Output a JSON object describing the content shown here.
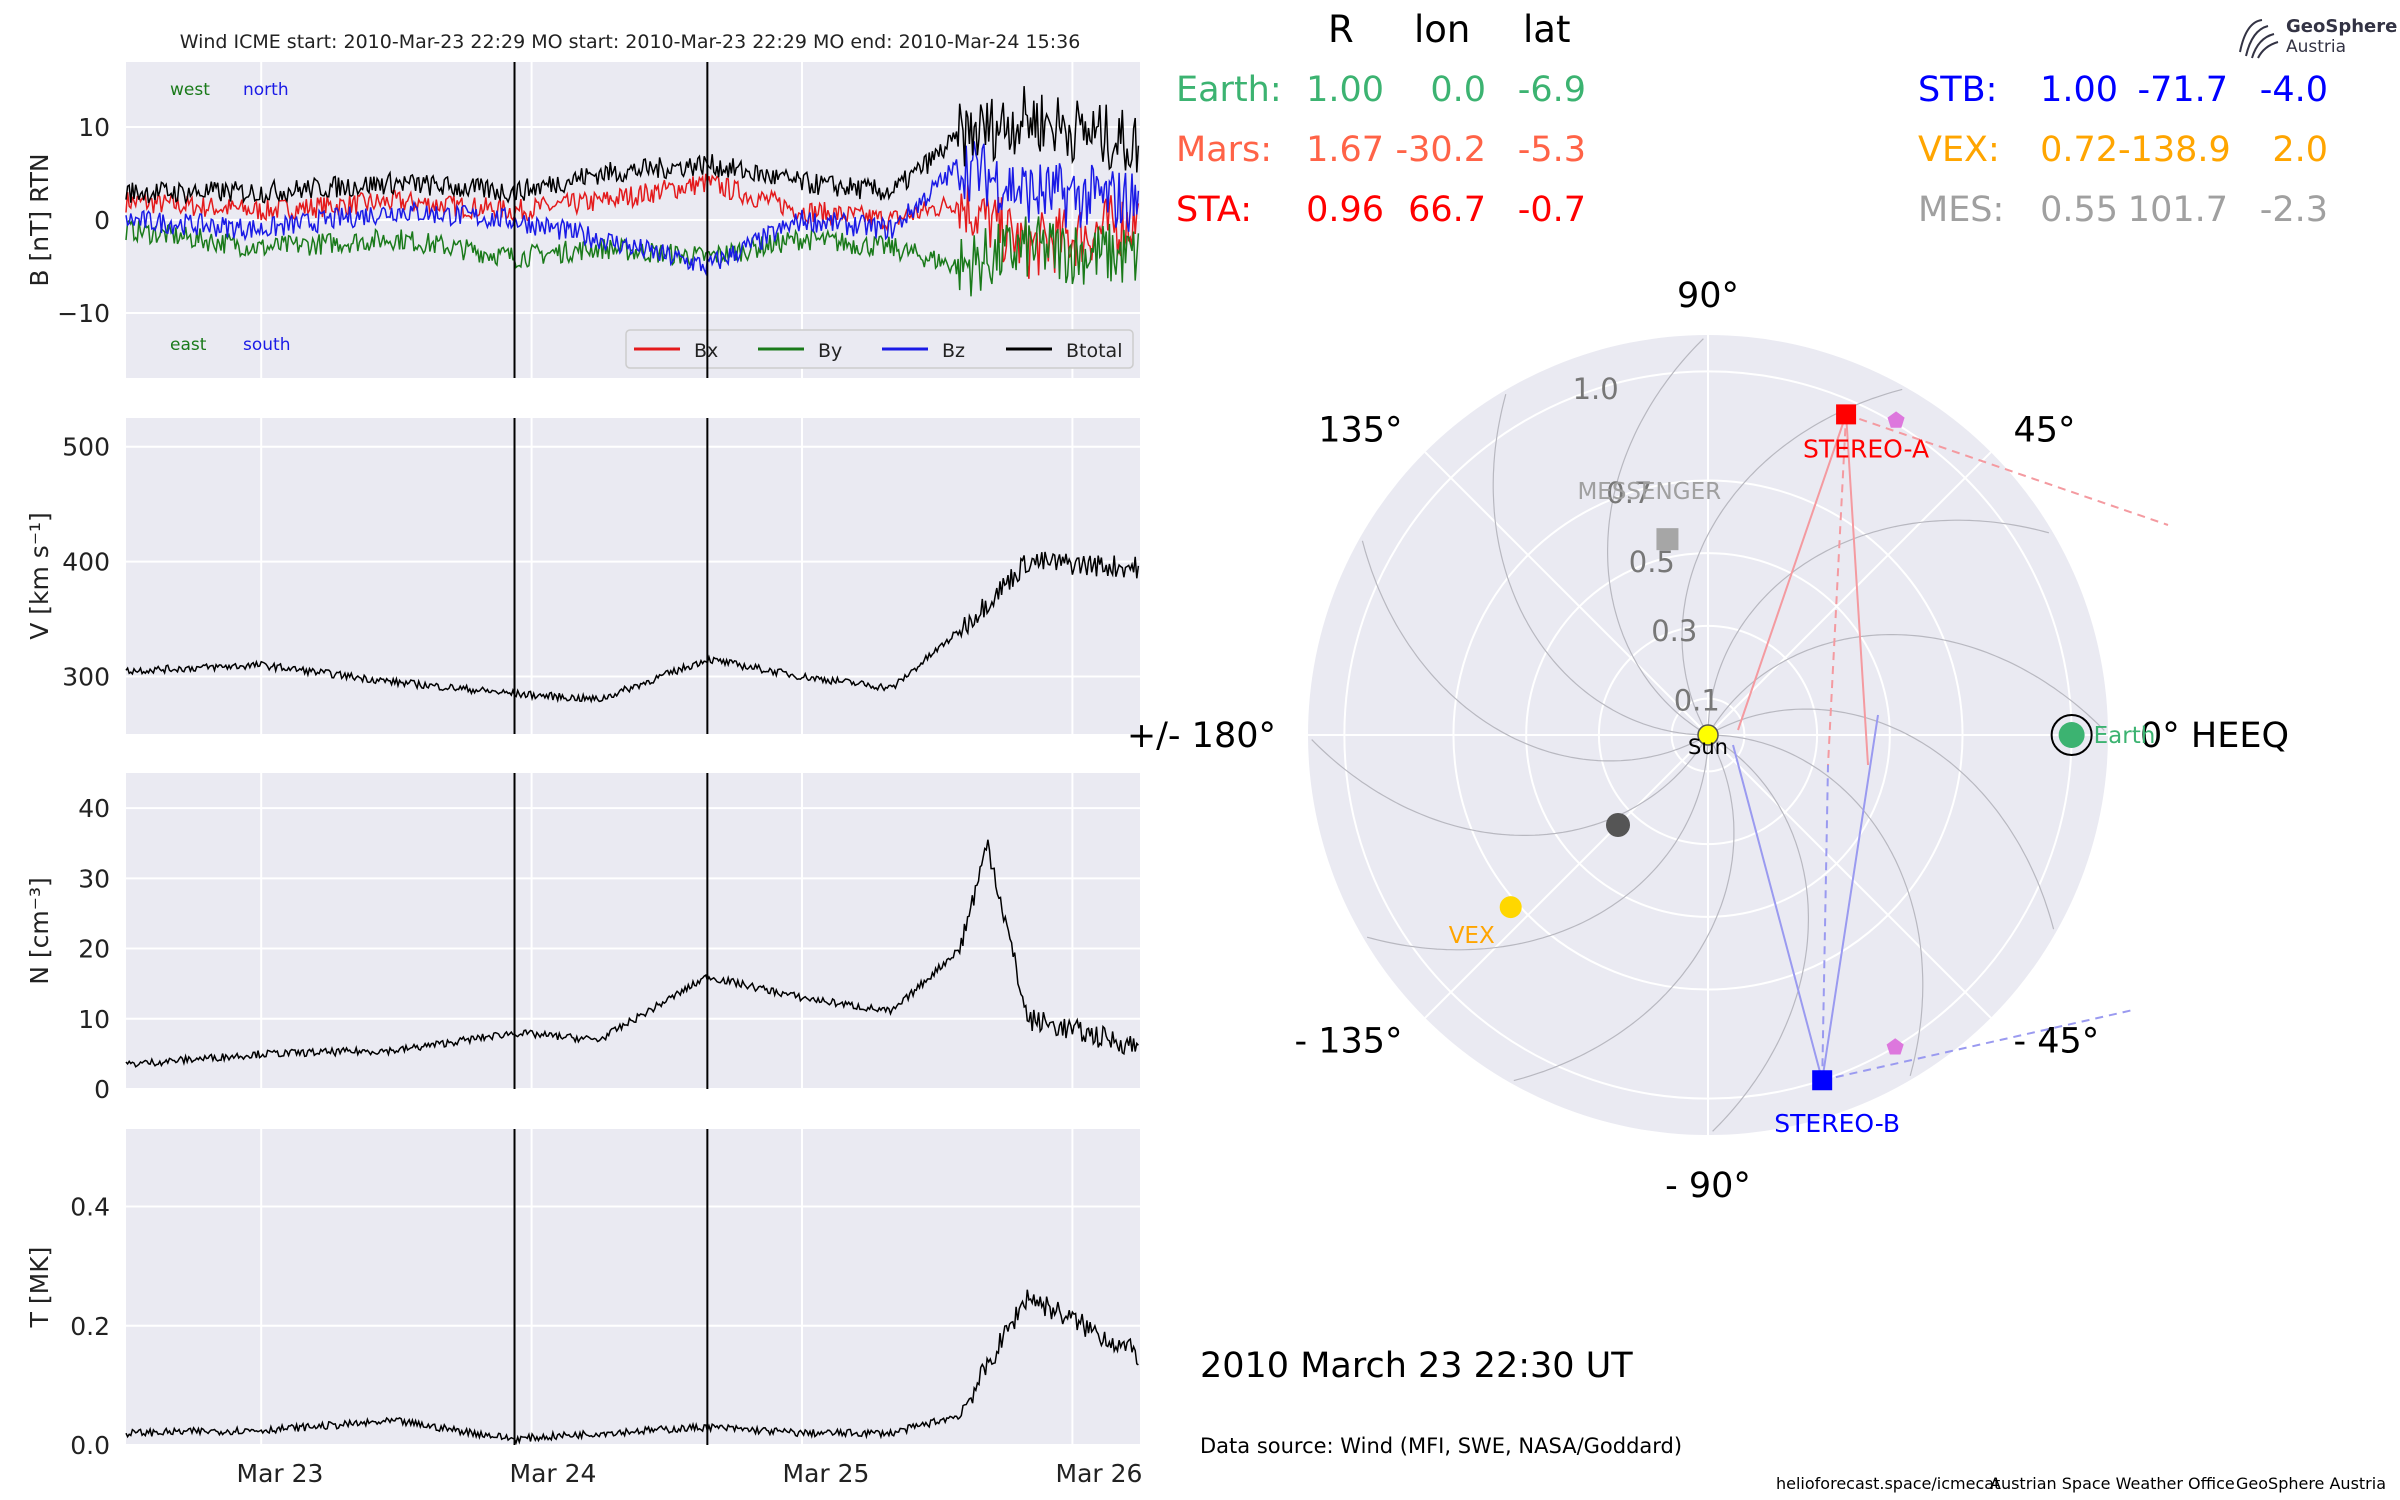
{
  "insitu": {
    "title": "Wind    ICME start: 2010-Mar-23 22:29   MO start: 2010-Mar-23 22:29   MO end: 2010-Mar-24 15:36",
    "annotations": {
      "west": "west",
      "north": "north",
      "east": "east",
      "south": "south"
    },
    "legend": [
      "Bx",
      "By",
      "Bz",
      "Btotal"
    ],
    "colors": {
      "Bx": "#e41a1c",
      "By": "#1a7a1a",
      "Bz": "#1a1ae6",
      "Btotal": "#000000",
      "west": "#1a7a1a",
      "north": "#1a1ae6"
    },
    "date_ticks": [
      "Mar 23",
      "Mar 24",
      "Mar 25",
      "Mar 26"
    ]
  },
  "polar": {
    "angle_labels": {
      "a90": "90°",
      "a45": "45°",
      "a135": "135°",
      "a0": "0° HEEQ",
      "a180": "+/- 180°",
      "am45": "- 45°",
      "am135": "- 135°",
      "am90": "- 90°"
    },
    "radial_labels": {
      "r01": "0.1",
      "r03": "0.3",
      "r05": "0.5",
      "r07": "0.7",
      "r10": "1.0"
    },
    "bodies": {
      "sun": "Sun",
      "earth": "Earth",
      "vex": "VEX",
      "messenger": "MESSENGER",
      "stereo_a": "STEREO-A",
      "stereo_b": "STEREO-B"
    },
    "colors": {
      "earth": "#3cb371",
      "vex": "#ffa500",
      "mes": "#a0a0a0",
      "sta": "#ff0000",
      "stb": "#0000ff",
      "mars": "#ff6347",
      "sun": "#ffff00",
      "mercury": "#555555",
      "pentagon": "#dd77dd"
    },
    "timestamp": "2010 March 23  22:30 UT",
    "data_source": "Data source: Wind (MFI, SWE, NASA/Goddard)"
  },
  "positions": {
    "header": {
      "R": "R",
      "lon": "lon",
      "lat": "lat"
    },
    "earth": {
      "name": "Earth:",
      "R": "1.00",
      "lon": "0.0",
      "lat": "-6.9"
    },
    "mars": {
      "name": "Mars:",
      "R": "1.67",
      "lon": "-30.2",
      "lat": "-5.3"
    },
    "sta": {
      "name": "STA:",
      "R": "0.96",
      "lon": "66.7",
      "lat": "-0.7"
    },
    "stb": {
      "name": "STB:",
      "R": "1.00",
      "lon": "-71.7",
      "lat": "-4.0"
    },
    "vex": {
      "name": "VEX:",
      "R": "0.72",
      "lon": "-138.9",
      "lat": "2.0"
    },
    "mes": {
      "name": "MES:",
      "R": "0.55",
      "lon": "101.7",
      "lat": "-2.3"
    }
  },
  "branding": {
    "logo_line1": "GeoSphere",
    "logo_line2": "Austria"
  },
  "footer": {
    "website": "helioforecast.space/icmecat",
    "office": "Austrian Space Weather Office",
    "org": "GeoSphere Austria"
  },
  "chart_data": [
    {
      "type": "line",
      "ylabel": "B [nT] RTN",
      "ylim": [
        -17,
        17
      ],
      "yticks": [
        -10,
        0,
        10
      ],
      "xlim": [
        "2010-03-22T12:00",
        "2010-03-26T06:00"
      ],
      "event_markers": [
        "2010-03-23T22:29",
        "2010-03-24T15:36"
      ],
      "series": [
        {
          "name": "Bx",
          "x": [
            "2010-03-22T12:00",
            "2010-03-23T00:00",
            "2010-03-23T12:00",
            "2010-03-23T22:29",
            "2010-03-24T06:00",
            "2010-03-24T15:36",
            "2010-03-25T00:00",
            "2010-03-25T08:00",
            "2010-03-25T14:00",
            "2010-03-25T20:00",
            "2010-03-26T06:00"
          ],
          "values": [
            2,
            1,
            2,
            1,
            2,
            4,
            1,
            0,
            2,
            -3,
            0
          ]
        },
        {
          "name": "By",
          "x": [
            "2010-03-22T12:00",
            "2010-03-23T00:00",
            "2010-03-23T12:00",
            "2010-03-23T22:29",
            "2010-03-24T06:00",
            "2010-03-24T15:36",
            "2010-03-25T00:00",
            "2010-03-25T08:00",
            "2010-03-25T14:00",
            "2010-03-25T20:00",
            "2010-03-26T06:00"
          ],
          "values": [
            -1,
            -3,
            -2,
            -4,
            -3,
            -4,
            -2,
            -3,
            -5,
            -3,
            -4
          ]
        },
        {
          "name": "Bz",
          "x": [
            "2010-03-22T12:00",
            "2010-03-23T00:00",
            "2010-03-23T12:00",
            "2010-03-23T22:29",
            "2010-03-24T06:00",
            "2010-03-24T15:36",
            "2010-03-25T00:00",
            "2010-03-25T08:00",
            "2010-03-25T14:00",
            "2010-03-25T20:00",
            "2010-03-26T06:00"
          ],
          "values": [
            0,
            -1,
            1,
            0,
            -2,
            -5,
            0,
            -1,
            6,
            3,
            2
          ]
        },
        {
          "name": "Btotal",
          "x": [
            "2010-03-22T12:00",
            "2010-03-23T00:00",
            "2010-03-23T12:00",
            "2010-03-23T22:29",
            "2010-03-24T06:00",
            "2010-03-24T15:36",
            "2010-03-25T00:00",
            "2010-03-25T08:00",
            "2010-03-25T14:00",
            "2010-03-25T20:00",
            "2010-03-26T06:00"
          ],
          "values": [
            3,
            3,
            4,
            3,
            5,
            6,
            4,
            3,
            9,
            11,
            8
          ]
        }
      ]
    },
    {
      "type": "line",
      "ylabel": "V [km s⁻¹]",
      "ylim": [
        250,
        525
      ],
      "yticks": [
        300,
        400,
        500
      ],
      "series": [
        {
          "x": [
            "2010-03-22T12:00",
            "2010-03-23T00:00",
            "2010-03-23T12:00",
            "2010-03-23T22:29",
            "2010-03-24T06:00",
            "2010-03-24T15:36",
            "2010-03-25T00:00",
            "2010-03-25T08:00",
            "2010-03-25T14:00",
            "2010-03-25T20:00",
            "2010-03-26T06:00"
          ],
          "values": [
            305,
            310,
            295,
            285,
            280,
            315,
            300,
            290,
            340,
            400,
            395
          ]
        }
      ]
    },
    {
      "type": "line",
      "ylabel": "N [cm⁻³]",
      "ylim": [
        0,
        45
      ],
      "yticks": [
        0,
        10,
        20,
        30,
        40
      ],
      "series": [
        {
          "x": [
            "2010-03-22T12:00",
            "2010-03-23T00:00",
            "2010-03-23T12:00",
            "2010-03-23T22:29",
            "2010-03-24T06:00",
            "2010-03-24T15:36",
            "2010-03-25T00:00",
            "2010-03-25T08:00",
            "2010-03-25T14:00",
            "2010-03-25T16:30",
            "2010-03-25T20:00",
            "2010-03-26T06:00"
          ],
          "values": [
            3.5,
            5,
            5.5,
            8,
            7,
            16,
            13,
            11,
            20,
            35,
            10,
            6
          ]
        }
      ]
    },
    {
      "type": "line",
      "ylabel": "T [MK]",
      "ylim": [
        0,
        0.53
      ],
      "yticks": [
        0.0,
        0.2,
        0.4
      ],
      "series": [
        {
          "x": [
            "2010-03-22T12:00",
            "2010-03-23T00:00",
            "2010-03-23T12:00",
            "2010-03-23T22:29",
            "2010-03-24T06:00",
            "2010-03-24T15:36",
            "2010-03-25T00:00",
            "2010-03-25T08:00",
            "2010-03-25T14:00",
            "2010-03-25T20:00",
            "2010-03-26T06:00"
          ],
          "values": [
            0.02,
            0.025,
            0.04,
            0.01,
            0.02,
            0.03,
            0.02,
            0.02,
            0.05,
            0.25,
            0.15
          ]
        }
      ]
    },
    {
      "type": "scatter",
      "subtype": "polar",
      "theta_units": "degrees HEEQ longitude",
      "r_units": "AU",
      "rlim": [
        0,
        1.1
      ],
      "points": [
        {
          "name": "Sun",
          "r": 0.0,
          "lon": 0.0
        },
        {
          "name": "Earth",
          "r": 1.0,
          "lon": 0.0
        },
        {
          "name": "STEREO-A",
          "r": 0.96,
          "lon": 66.7
        },
        {
          "name": "STEREO-B",
          "r": 1.0,
          "lon": -71.7
        },
        {
          "name": "VEX",
          "r": 0.72,
          "lon": -138.9
        },
        {
          "name": "MESSENGER",
          "r": 0.55,
          "lon": 101.7
        }
      ]
    }
  ]
}
